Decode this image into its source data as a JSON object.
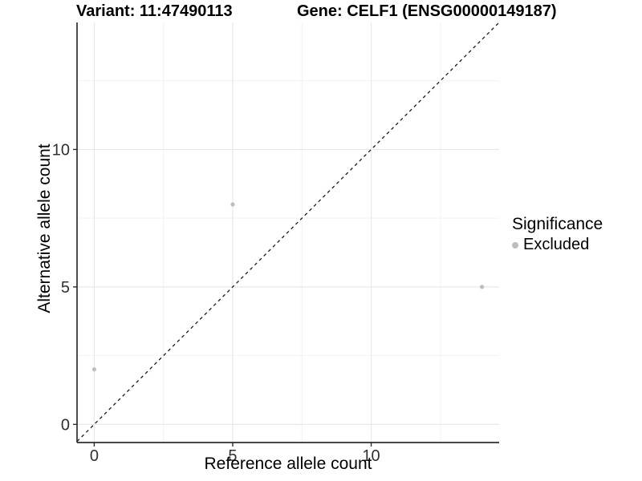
{
  "header": {
    "variant_title": "Variant: 11:47490113",
    "gene_title": "Gene: CELF1 (ENSG00000149187)"
  },
  "legend": {
    "title": "Significance",
    "items": [
      {
        "label": "Excluded",
        "color": "#bdbdbd",
        "marker": "circle"
      }
    ]
  },
  "chart_data": {
    "type": "scatter",
    "xlabel": "Reference allele count",
    "ylabel": "Alternative allele count",
    "xlim": [
      -0.62,
      14.62
    ],
    "ylim": [
      -0.66,
      14.62
    ],
    "x_ticks": [
      0,
      5,
      10
    ],
    "y_ticks": [
      0,
      5,
      10
    ],
    "x_minor_ticks": [
      2.5,
      7.5,
      12.5
    ],
    "y_minor_ticks": [
      2.5,
      7.5,
      12.5
    ],
    "grid": "on",
    "legend_position": "right-center",
    "series": [
      {
        "name": "Excluded",
        "color": "#bdbdbd",
        "marker_radius": 2.6,
        "points": [
          {
            "x": 0,
            "y": 2
          },
          {
            "x": 5,
            "y": 8
          },
          {
            "x": 14,
            "y": 5
          }
        ]
      }
    ],
    "abline": {
      "slope": 1,
      "intercept": 0,
      "linetype": "dashed",
      "color": "#1a1a1a"
    },
    "style": {
      "grid_major_color": "#e8e8e8",
      "grid_minor_color": "#f2f2f2",
      "axis_line_color": "#2e2e2e",
      "tick_label_color": "#303030"
    }
  }
}
